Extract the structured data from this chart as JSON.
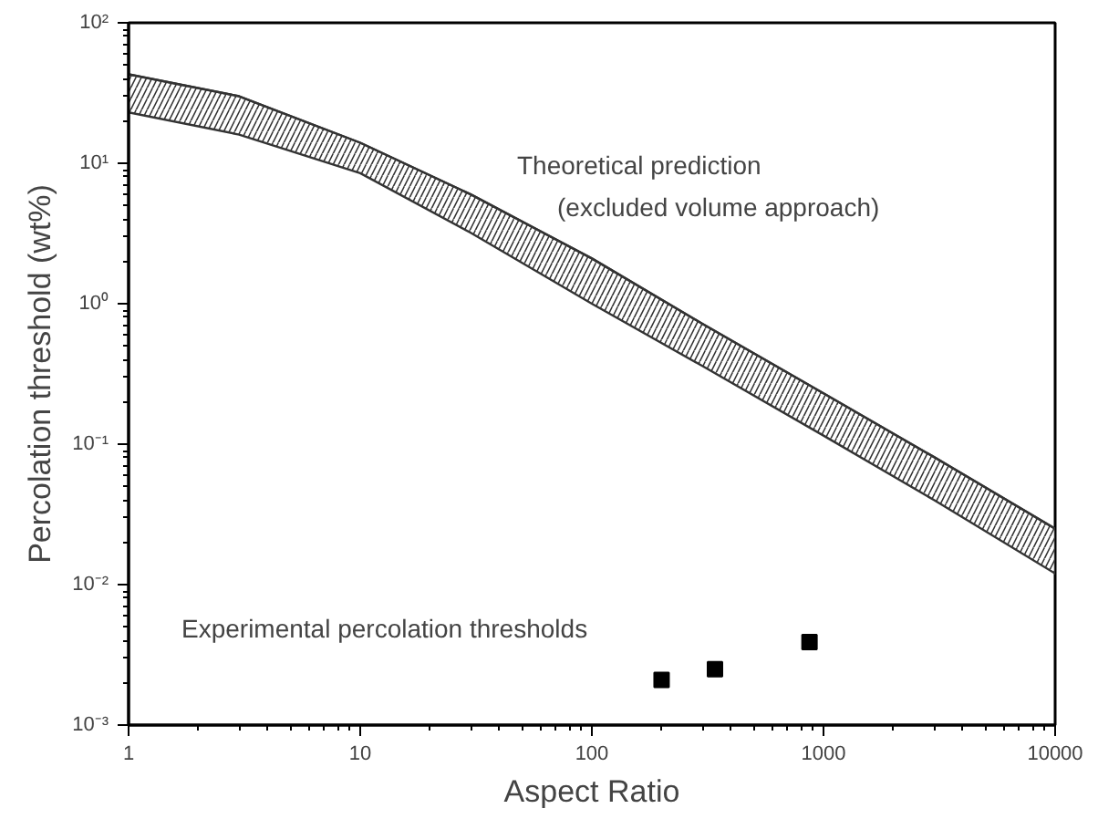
{
  "chart_data": {
    "type": "scatter",
    "xlabel": "Aspect Ratio",
    "ylabel": "Percolation threshold (wt%)",
    "log": "xy",
    "xlim": [
      1,
      10000
    ],
    "ylim": [
      0.001,
      100
    ],
    "xticks": [
      1,
      10,
      100,
      1000,
      10000
    ],
    "yticks": [
      {
        "value": 0.001,
        "label": "10⁻³"
      },
      {
        "value": 0.01,
        "label": "10⁻²"
      },
      {
        "value": 0.1,
        "label": "10⁻¹"
      },
      {
        "value": 1,
        "label": "10⁰"
      },
      {
        "value": 10,
        "label": "10¹"
      },
      {
        "value": 100,
        "label": "10²"
      }
    ],
    "grid": false,
    "series": [
      {
        "type": "line",
        "color": "#333333",
        "x": [
          1,
          3,
          10,
          30,
          100,
          300,
          1000,
          3000,
          10000
        ],
        "values": [
          43,
          30,
          14,
          6.0,
          2.1,
          0.72,
          0.23,
          0.081,
          0.025
        ],
        "lower": [
          23,
          16,
          8.5,
          3.2,
          1.0,
          0.36,
          0.115,
          0.04,
          0.012
        ],
        "upper": [
          43,
          30,
          14,
          6.0,
          2.1,
          0.72,
          0.23,
          0.081,
          0.025
        ]
      },
      {
        "color": "#000000",
        "marker": "square",
        "x": [
          200,
          340,
          870
        ],
        "values": [
          0.0021,
          0.0025,
          0.0039
        ]
      }
    ],
    "annotations": [
      "Theoretical prediction",
      "(excluded volume approach)",
      "Experimental percolation thresholds"
    ]
  }
}
